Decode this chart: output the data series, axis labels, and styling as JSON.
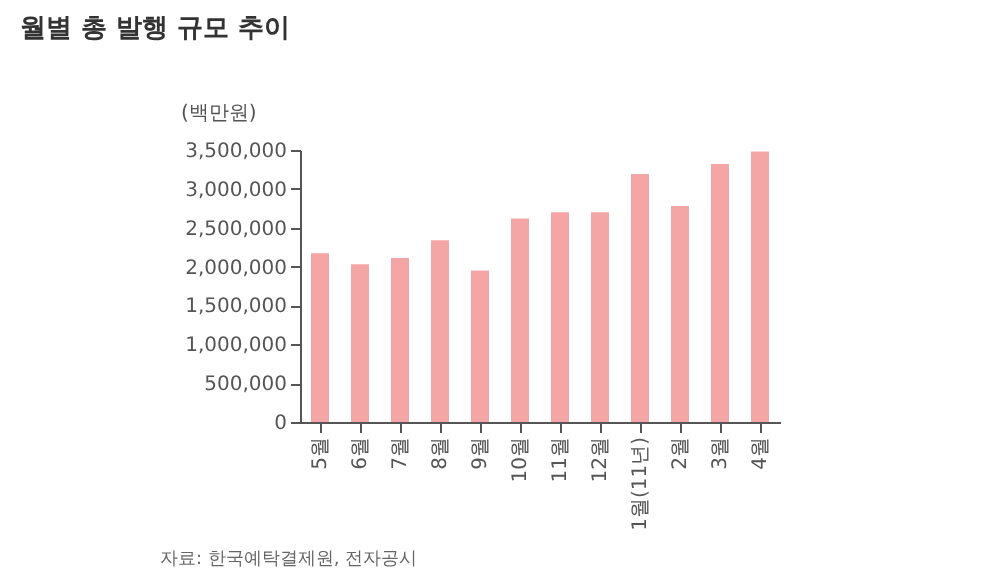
{
  "chart_data": {
    "type": "bar",
    "title": "월별 총 발행 규모 추이",
    "ylabel": "(백만원)",
    "categories": [
      "5월",
      "6월",
      "7월",
      "8월",
      "9월",
      "10월",
      "11월",
      "12월",
      "1월(11년)",
      "2월",
      "3월",
      "4월"
    ],
    "values": [
      2170000,
      2030000,
      2110000,
      2340000,
      1950000,
      2620000,
      2700000,
      2700000,
      3190000,
      2780000,
      3320000,
      3480000
    ],
    "color": "#f4a6a6",
    "ylim": [
      0,
      3500000
    ],
    "yticks": [
      0,
      {
        "value": 500000,
        "label": "500,000"
      },
      {
        "value": 1000000,
        "label": "1,000,000"
      },
      {
        "value": 1500000,
        "label": "1,500,000"
      },
      {
        "value": 2000000,
        "label": "2,000,000"
      },
      {
        "value": 2500000,
        "label": "2,500,000"
      },
      {
        "value": 3000000,
        "label": "3,000,000"
      },
      {
        "value": 3500000,
        "label": "3,500,000"
      }
    ],
    "grid": false,
    "annotations": [
      "자료: 한국예탁결제원, 전자공시"
    ]
  }
}
